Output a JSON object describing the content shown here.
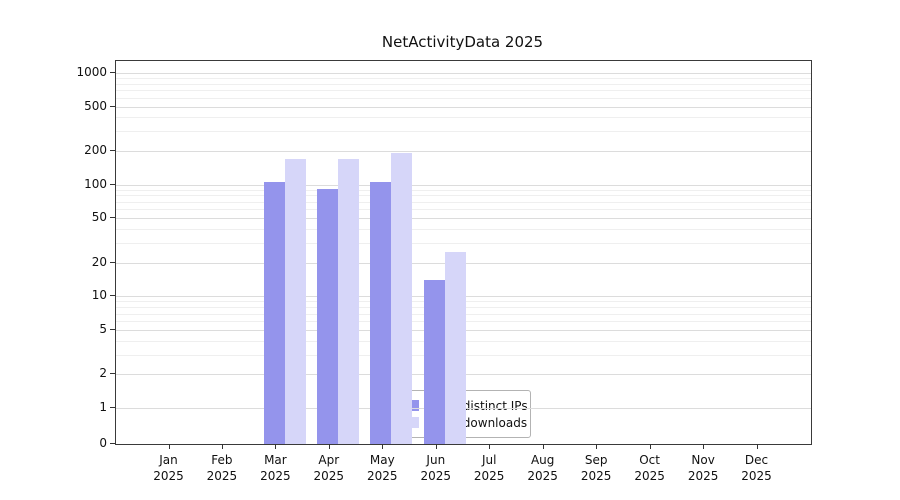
{
  "chart_data": {
    "type": "bar",
    "title": "NetActivityData 2025",
    "yscale": "symlog",
    "yticks": [
      0,
      1,
      2,
      5,
      10,
      20,
      50,
      100,
      200,
      500,
      1000
    ],
    "ylim": [
      0,
      1300
    ],
    "xlabel": "",
    "ylabel": "",
    "grid": "horizontal major and minor gridlines",
    "legend_position": "lower center",
    "month_labels": [
      "Jan",
      "Feb",
      "Mar",
      "Apr",
      "May",
      "Jun",
      "Jul",
      "Aug",
      "Sep",
      "Oct",
      "Nov",
      "Dec"
    ],
    "year_label": "2025",
    "categories": [
      "Jan 2025",
      "Feb 2025",
      "Mar 2025",
      "Apr 2025",
      "May 2025",
      "Jun 2025",
      "Jul 2025",
      "Aug 2025",
      "Sep 2025",
      "Oct 2025",
      "Nov 2025",
      "Dec 2025"
    ],
    "series": [
      {
        "name": "Nb of distinct IPs",
        "color": "#9494ec",
        "values": [
          105,
          92,
          105,
          14,
          0,
          0,
          0,
          0,
          0,
          0,
          0,
          0
        ]
      },
      {
        "name": "Nb of downloads",
        "color": "#d6d6f9",
        "values": [
          170,
          170,
          190,
          25,
          0,
          0,
          0,
          0,
          0,
          0,
          0,
          0
        ]
      }
    ]
  }
}
